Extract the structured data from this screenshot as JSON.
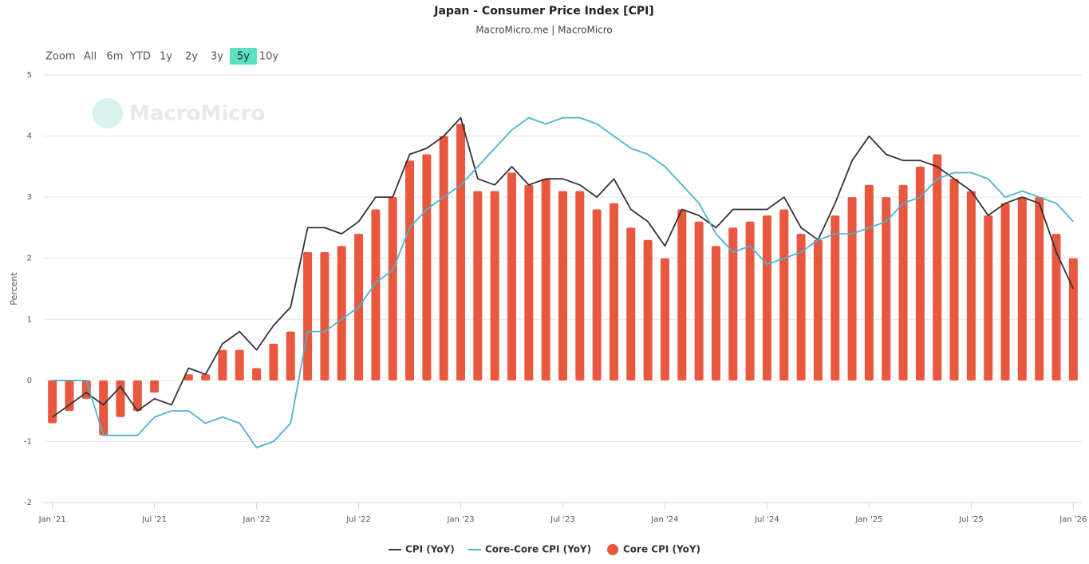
{
  "chart_data": {
    "type": "combo",
    "title": "Japan - Consumer Price Index [CPI]",
    "subtitle": "MacroMicro.me | MacroMicro",
    "watermark": "MacroMicro",
    "y_label": "Percent",
    "range_label": "Zoom",
    "range_buttons": [
      "All",
      "6m",
      "YTD",
      "1y",
      "2y",
      "3y",
      "5y",
      "10y"
    ],
    "selected_range": 6,
    "categories": [
      "Jan '21",
      null,
      null,
      null,
      null,
      null,
      "Jul '21",
      null,
      null,
      null,
      null,
      null,
      "Jan '22",
      null,
      null,
      null,
      null,
      null,
      "Jul '22",
      null,
      null,
      null,
      null,
      null,
      "Jan '23",
      null,
      null,
      null,
      null,
      null,
      "Jul '23",
      null,
      null,
      null,
      null,
      null,
      "Jan '24",
      null,
      null,
      null,
      null,
      null,
      "Jul '24",
      null,
      null,
      null,
      null,
      null,
      "Jan '25",
      null,
      null,
      null,
      null,
      null,
      "Jul '25",
      null,
      null,
      null,
      null,
      null,
      "Jan '26"
    ],
    "series": [
      {
        "name": "CPI (YoY)",
        "type": "line",
        "color": "#333333",
        "values": [
          -0.6,
          -0.4,
          -0.2,
          -0.4,
          -0.1,
          -0.5,
          -0.3,
          -0.4,
          0.2,
          0.1,
          0.6,
          0.8,
          0.5,
          0.9,
          1.2,
          2.5,
          2.5,
          2.4,
          2.6,
          3.0,
          3.0,
          3.7,
          3.8,
          4.0,
          4.3,
          3.3,
          3.2,
          3.5,
          3.2,
          3.3,
          3.3,
          3.2,
          3.0,
          3.3,
          2.8,
          2.6,
          2.2,
          2.8,
          2.7,
          2.5,
          2.8,
          2.8,
          2.8,
          3.0,
          2.5,
          2.3,
          2.9,
          3.6,
          4.0,
          3.7,
          3.6,
          3.6,
          3.5,
          3.3,
          3.1,
          2.7,
          2.9,
          3.0,
          2.9,
          2.1,
          1.5
        ]
      },
      {
        "name": "Core-Core CPI (YoY)",
        "type": "line",
        "color": "#4bb3d3",
        "values": [
          0.0,
          0.0,
          0.0,
          -0.9,
          -0.9,
          -0.9,
          -0.6,
          -0.5,
          -0.5,
          -0.7,
          -0.6,
          -0.7,
          -1.1,
          -1.0,
          -0.7,
          0.8,
          0.8,
          1.0,
          1.2,
          1.6,
          1.8,
          2.5,
          2.8,
          3.0,
          3.2,
          3.5,
          3.8,
          4.1,
          4.3,
          4.2,
          4.3,
          4.3,
          4.2,
          4.0,
          3.8,
          3.7,
          3.5,
          3.2,
          2.9,
          2.4,
          2.1,
          2.2,
          1.9,
          2.0,
          2.1,
          2.3,
          2.4,
          2.4,
          2.5,
          2.6,
          2.9,
          3.0,
          3.3,
          3.4,
          3.4,
          3.3,
          3.0,
          3.1,
          3.0,
          2.9,
          2.6
        ]
      },
      {
        "name": "Core CPI (YoY)",
        "type": "bar",
        "color": "#e8573e",
        "values": [
          -0.7,
          -0.5,
          -0.3,
          -0.9,
          -0.6,
          -0.5,
          -0.2,
          0,
          0.1,
          0.1,
          0.5,
          0.5,
          0.2,
          0.6,
          0.8,
          2.1,
          2.1,
          2.2,
          2.4,
          2.8,
          3.0,
          3.6,
          3.7,
          4.0,
          4.2,
          3.1,
          3.1,
          3.4,
          3.2,
          3.3,
          3.1,
          3.1,
          2.8,
          2.9,
          2.5,
          2.3,
          2.0,
          2.8,
          2.6,
          2.2,
          2.5,
          2.6,
          2.7,
          2.8,
          2.4,
          2.3,
          2.7,
          3.0,
          3.2,
          3.0,
          3.2,
          3.5,
          3.7,
          3.3,
          3.1,
          2.7,
          2.9,
          3.0,
          3.0,
          2.4,
          2.0
        ]
      }
    ],
    "ylim": [
      -2,
      5
    ],
    "yticks": [
      -2,
      -1,
      0,
      1,
      2,
      3,
      4,
      5
    ],
    "grid": true,
    "legend": "bottom"
  }
}
